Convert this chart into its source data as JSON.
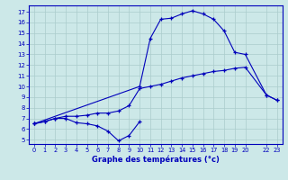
{
  "xlabel": "Graphe des températures (°c)",
  "bg_color": "#cce8e8",
  "grid_color": "#aacccc",
  "line_color": "#0000bb",
  "xtick_pos": [
    0,
    1,
    2,
    3,
    4,
    5,
    6,
    7,
    8,
    9,
    10,
    11,
    12,
    13,
    14,
    15,
    16,
    17,
    18,
    19,
    20,
    22,
    23
  ],
  "xtick_labels": [
    "0",
    "1",
    "2",
    "3",
    "4",
    "5",
    "6",
    "7",
    "8",
    "9",
    "10",
    "11",
    "12",
    "13",
    "14",
    "15",
    "16",
    "17",
    "18",
    "19",
    "20",
    "22",
    "23"
  ],
  "yticks": [
    5,
    6,
    7,
    8,
    9,
    10,
    11,
    12,
    13,
    14,
    15,
    16,
    17
  ],
  "xlim": [
    -0.5,
    23.5
  ],
  "ylim": [
    4.6,
    17.6
  ],
  "curve1_x": [
    0,
    1,
    2,
    3,
    4,
    5,
    6,
    7,
    8,
    9,
    10
  ],
  "curve1_y": [
    6.5,
    6.7,
    7.0,
    7.0,
    6.6,
    6.5,
    6.3,
    5.8,
    4.9,
    5.4,
    6.7
  ],
  "curve2_x": [
    0,
    1,
    2,
    3,
    4,
    5,
    6,
    7,
    8,
    9,
    10,
    11,
    12,
    13,
    14,
    15,
    16,
    17,
    18,
    19,
    20,
    22,
    23
  ],
  "curve2_y": [
    6.5,
    6.7,
    7.0,
    7.2,
    7.2,
    7.3,
    7.5,
    7.5,
    7.7,
    8.2,
    9.8,
    10.0,
    10.2,
    10.5,
    10.8,
    11.0,
    11.2,
    11.4,
    11.5,
    11.7,
    11.8,
    9.2,
    8.7
  ],
  "curve3_x": [
    0,
    10,
    11,
    12,
    13,
    14,
    15,
    16,
    17,
    18,
    19,
    20,
    22,
    23
  ],
  "curve3_y": [
    6.5,
    10.0,
    14.5,
    16.3,
    16.4,
    16.8,
    17.1,
    16.8,
    16.3,
    15.2,
    13.2,
    13.0,
    9.2,
    8.7
  ]
}
